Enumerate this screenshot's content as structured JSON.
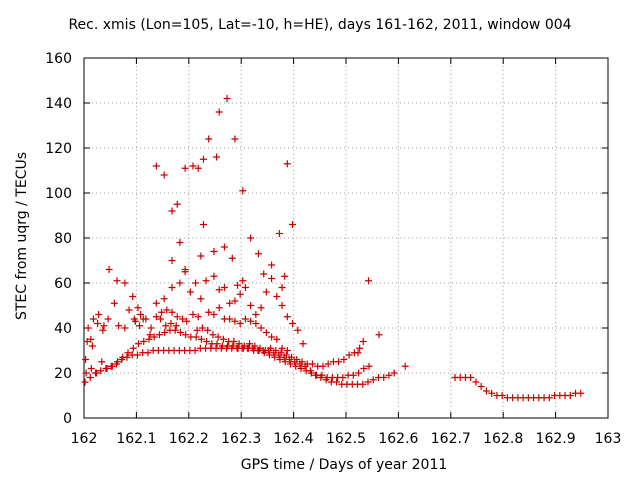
{
  "chart_data": {
    "type": "scatter",
    "title": "Rec. xmis (Lon=105, Lat=-10, h=HE), days 161-162, 2011, window 004",
    "xlabel": "GPS time / Days of year 2011",
    "ylabel": "STEC from uqrg / TECUs",
    "xlim": [
      162,
      163
    ],
    "ylim": [
      0,
      160
    ],
    "xticks": [
      "162",
      "162.1",
      "162.2",
      "162.3",
      "162.4",
      "162.5",
      "162.6",
      "162.7",
      "162.8",
      "162.9",
      "163"
    ],
    "yticks": [
      "0",
      "20",
      "40",
      "60",
      "80",
      "100",
      "120",
      "140",
      "160"
    ],
    "grid": true,
    "marker": "+",
    "color": "#cc0000",
    "points": [
      [
        162.002,
        16
      ],
      [
        162.012,
        18
      ],
      [
        162.022,
        20
      ],
      [
        162.032,
        21
      ],
      [
        162.042,
        22
      ],
      [
        162.052,
        23
      ],
      [
        162.062,
        24
      ],
      [
        162.072,
        26
      ],
      [
        162.082,
        27
      ],
      [
        162.092,
        28
      ],
      [
        162.102,
        28
      ],
      [
        162.112,
        29
      ],
      [
        162.122,
        29
      ],
      [
        162.132,
        30
      ],
      [
        162.142,
        30
      ],
      [
        162.152,
        30
      ],
      [
        162.162,
        30
      ],
      [
        162.172,
        30
      ],
      [
        162.182,
        30
      ],
      [
        162.192,
        30
      ],
      [
        162.202,
        30
      ],
      [
        162.212,
        30
      ],
      [
        162.222,
        31
      ],
      [
        162.232,
        31
      ],
      [
        162.242,
        31
      ],
      [
        162.252,
        31
      ],
      [
        162.262,
        31
      ],
      [
        162.272,
        31
      ],
      [
        162.282,
        31
      ],
      [
        162.292,
        31
      ],
      [
        162.302,
        31
      ],
      [
        162.312,
        31
      ],
      [
        162.322,
        31
      ],
      [
        162.332,
        30
      ],
      [
        162.342,
        30
      ],
      [
        162.352,
        30
      ],
      [
        162.362,
        29
      ],
      [
        162.372,
        28
      ],
      [
        162.382,
        27
      ],
      [
        162.392,
        26
      ],
      [
        162.402,
        25
      ],
      [
        162.412,
        24
      ],
      [
        162.422,
        23
      ],
      [
        162.432,
        21
      ],
      [
        162.442,
        19
      ],
      [
        162.452,
        18
      ],
      [
        162.462,
        17
      ],
      [
        162.472,
        16
      ],
      [
        162.482,
        16
      ],
      [
        162.492,
        15
      ],
      [
        162.502,
        15
      ],
      [
        162.512,
        15
      ],
      [
        162.522,
        15
      ],
      [
        162.532,
        15
      ],
      [
        162.542,
        16
      ],
      [
        162.552,
        17
      ],
      [
        162.562,
        18
      ],
      [
        162.572,
        18
      ],
      [
        162.582,
        19
      ],
      [
        162.592,
        20
      ],
      [
        162.004,
        20
      ],
      [
        162.014,
        22
      ],
      [
        162.024,
        20
      ],
      [
        162.034,
        25
      ],
      [
        162.044,
        22
      ],
      [
        162.054,
        23
      ],
      [
        162.064,
        25
      ],
      [
        162.074,
        27
      ],
      [
        162.084,
        29
      ],
      [
        162.094,
        31
      ],
      [
        162.104,
        33
      ],
      [
        162.114,
        34
      ],
      [
        162.124,
        35
      ],
      [
        162.134,
        36
      ],
      [
        162.144,
        37
      ],
      [
        162.154,
        38
      ],
      [
        162.164,
        39
      ],
      [
        162.174,
        39
      ],
      [
        162.184,
        38
      ],
      [
        162.194,
        37
      ],
      [
        162.204,
        36
      ],
      [
        162.214,
        36
      ],
      [
        162.224,
        35
      ],
      [
        162.234,
        34
      ],
      [
        162.244,
        33
      ],
      [
        162.254,
        33
      ],
      [
        162.264,
        32
      ],
      [
        162.274,
        32
      ],
      [
        162.284,
        32
      ],
      [
        162.294,
        31
      ],
      [
        162.304,
        31
      ],
      [
        162.314,
        31
      ],
      [
        162.324,
        30
      ],
      [
        162.334,
        30
      ],
      [
        162.344,
        29
      ],
      [
        162.354,
        28
      ],
      [
        162.364,
        27
      ],
      [
        162.374,
        26
      ],
      [
        162.384,
        25
      ],
      [
        162.394,
        24
      ],
      [
        162.404,
        23
      ],
      [
        162.414,
        22
      ],
      [
        162.424,
        21
      ],
      [
        162.434,
        20
      ],
      [
        162.444,
        19
      ],
      [
        162.454,
        19
      ],
      [
        162.464,
        18
      ],
      [
        162.474,
        18
      ],
      [
        162.484,
        18
      ],
      [
        162.494,
        18
      ],
      [
        162.504,
        19
      ],
      [
        162.514,
        19
      ],
      [
        162.524,
        20
      ],
      [
        162.534,
        22
      ],
      [
        162.544,
        23
      ],
      [
        162.006,
        34
      ],
      [
        162.016,
        32
      ],
      [
        162.026,
        42
      ],
      [
        162.036,
        39
      ],
      [
        162.046,
        44
      ],
      [
        162.066,
        41
      ],
      [
        162.086,
        48
      ],
      [
        162.096,
        44
      ],
      [
        162.106,
        41
      ],
      [
        162.126,
        37
      ],
      [
        162.146,
        44
      ],
      [
        162.156,
        41
      ],
      [
        162.166,
        42
      ],
      [
        162.176,
        41
      ],
      [
        162.196,
        43
      ],
      [
        162.216,
        39
      ],
      [
        162.226,
        40
      ],
      [
        162.236,
        39
      ],
      [
        162.246,
        37
      ],
      [
        162.256,
        36
      ],
      [
        162.266,
        35
      ],
      [
        162.276,
        34
      ],
      [
        162.286,
        34
      ],
      [
        162.296,
        33
      ],
      [
        162.306,
        32
      ],
      [
        162.316,
        33
      ],
      [
        162.326,
        32
      ],
      [
        162.336,
        31
      ],
      [
        162.346,
        30
      ],
      [
        162.356,
        31
      ],
      [
        162.366,
        30
      ],
      [
        162.376,
        29
      ],
      [
        162.386,
        28
      ],
      [
        162.396,
        27
      ],
      [
        162.406,
        26
      ],
      [
        162.416,
        25
      ],
      [
        162.426,
        24
      ],
      [
        162.436,
        24
      ],
      [
        162.446,
        23
      ],
      [
        162.456,
        23
      ],
      [
        162.466,
        24
      ],
      [
        162.476,
        25
      ],
      [
        162.486,
        25
      ],
      [
        162.496,
        26
      ],
      [
        162.506,
        28
      ],
      [
        162.516,
        29
      ],
      [
        162.526,
        31
      ],
      [
        162.008,
        40
      ],
      [
        162.018,
        44
      ],
      [
        162.028,
        46
      ],
      [
        162.038,
        41
      ],
      [
        162.058,
        51
      ],
      [
        162.078,
        40
      ],
      [
        162.098,
        43
      ],
      [
        162.108,
        46
      ],
      [
        162.118,
        44
      ],
      [
        162.138,
        45
      ],
      [
        162.148,
        47
      ],
      [
        162.158,
        48
      ],
      [
        162.168,
        47
      ],
      [
        162.178,
        45
      ],
      [
        162.188,
        44
      ],
      [
        162.208,
        46
      ],
      [
        162.218,
        45
      ],
      [
        162.238,
        47
      ],
      [
        162.248,
        46
      ],
      [
        162.258,
        49
      ],
      [
        162.268,
        44
      ],
      [
        162.278,
        44
      ],
      [
        162.288,
        43
      ],
      [
        162.298,
        42
      ],
      [
        162.308,
        44
      ],
      [
        162.318,
        43
      ],
      [
        162.328,
        42
      ],
      [
        162.338,
        40
      ],
      [
        162.348,
        38
      ],
      [
        162.358,
        36
      ],
      [
        162.368,
        35
      ],
      [
        162.378,
        31
      ],
      [
        162.388,
        30
      ],
      [
        162.003,
        26
      ],
      [
        162.013,
        35
      ],
      [
        162.048,
        66
      ],
      [
        162.063,
        61
      ],
      [
        162.078,
        60
      ],
      [
        162.093,
        54
      ],
      [
        162.103,
        49
      ],
      [
        162.113,
        44
      ],
      [
        162.128,
        40
      ],
      [
        162.138,
        51
      ],
      [
        162.153,
        53
      ],
      [
        162.168,
        58
      ],
      [
        162.183,
        60
      ],
      [
        162.193,
        65
      ],
      [
        162.203,
        56
      ],
      [
        162.213,
        60
      ],
      [
        162.223,
        53
      ],
      [
        162.233,
        61
      ],
      [
        162.248,
        63
      ],
      [
        162.258,
        57
      ],
      [
        162.268,
        58
      ],
      [
        162.278,
        51
      ],
      [
        162.288,
        52
      ],
      [
        162.298,
        55
      ],
      [
        162.308,
        58
      ],
      [
        162.318,
        50
      ],
      [
        162.328,
        46
      ],
      [
        162.338,
        49
      ],
      [
        162.348,
        56
      ],
      [
        162.358,
        62
      ],
      [
        162.368,
        54
      ],
      [
        162.378,
        50
      ],
      [
        162.388,
        45
      ],
      [
        162.398,
        42
      ],
      [
        162.408,
        39
      ],
      [
        162.418,
        33
      ],
      [
        162.138,
        112
      ],
      [
        162.153,
        108
      ],
      [
        162.168,
        92
      ],
      [
        162.178,
        95
      ],
      [
        162.183,
        78
      ],
      [
        162.193,
        111
      ],
      [
        162.208,
        112
      ],
      [
        162.218,
        111
      ],
      [
        162.228,
        115
      ],
      [
        162.238,
        124
      ],
      [
        162.253,
        116
      ],
      [
        162.258,
        136
      ],
      [
        162.273,
        142
      ],
      [
        162.288,
        124
      ],
      [
        162.303,
        101
      ],
      [
        162.228,
        86
      ],
      [
        162.248,
        74
      ],
      [
        162.268,
        76
      ],
      [
        162.283,
        71
      ],
      [
        162.318,
        80
      ],
      [
        162.333,
        73
      ],
      [
        162.358,
        68
      ],
      [
        162.373,
        82
      ],
      [
        162.388,
        113
      ],
      [
        162.398,
        86
      ],
      [
        162.168,
        70
      ],
      [
        162.193,
        66
      ],
      [
        162.223,
        72
      ],
      [
        162.293,
        59
      ],
      [
        162.303,
        61
      ],
      [
        162.343,
        64
      ],
      [
        162.378,
        58
      ],
      [
        162.383,
        63
      ],
      [
        162.543,
        61
      ],
      [
        162.563,
        37
      ],
      [
        162.523,
        29
      ],
      [
        162.533,
        34
      ],
      [
        162.613,
        23
      ],
      [
        162.708,
        18
      ],
      [
        162.718,
        18
      ],
      [
        162.728,
        18
      ],
      [
        162.738,
        18
      ],
      [
        162.748,
        16
      ],
      [
        162.758,
        14
      ],
      [
        162.768,
        12
      ],
      [
        162.778,
        11
      ],
      [
        162.788,
        10
      ],
      [
        162.798,
        10
      ],
      [
        162.808,
        9
      ],
      [
        162.818,
        9
      ],
      [
        162.828,
        9
      ],
      [
        162.838,
        9
      ],
      [
        162.848,
        9
      ],
      [
        162.858,
        9
      ],
      [
        162.868,
        9
      ],
      [
        162.878,
        9
      ],
      [
        162.888,
        9
      ],
      [
        162.898,
        10
      ],
      [
        162.908,
        10
      ],
      [
        162.918,
        10
      ],
      [
        162.928,
        10
      ],
      [
        162.938,
        11
      ],
      [
        162.948,
        11
      ]
    ]
  }
}
